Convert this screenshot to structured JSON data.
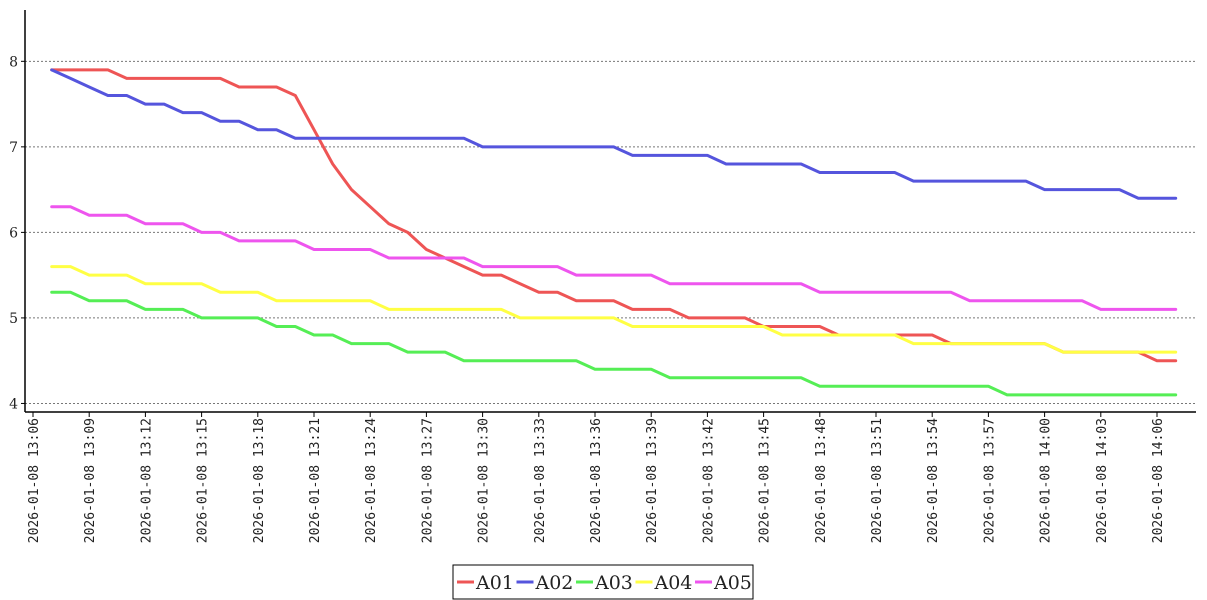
{
  "chart_data": {
    "type": "line",
    "title": "",
    "xlabel": "",
    "ylabel": "",
    "x_ticks": [
      "2026-01-08 13:06",
      "2026-01-08 13:09",
      "2026-01-08 13:12",
      "2026-01-08 13:15",
      "2026-01-08 13:18",
      "2026-01-08 13:21",
      "2026-01-08 13:24",
      "2026-01-08 13:27",
      "2026-01-08 13:30",
      "2026-01-08 13:33",
      "2026-01-08 13:36",
      "2026-01-08 13:39",
      "2026-01-08 13:42",
      "2026-01-08 13:45",
      "2026-01-08 13:48",
      "2026-01-08 13:51",
      "2026-01-08 13:54",
      "2026-01-08 13:57",
      "2026-01-08 14:00",
      "2026-01-08 14:03",
      "2026-01-08 14:06"
    ],
    "x": [
      "2026-01-08 13:07",
      "2026-01-08 13:08",
      "2026-01-08 13:09",
      "2026-01-08 13:10",
      "2026-01-08 13:11",
      "2026-01-08 13:12",
      "2026-01-08 13:13",
      "2026-01-08 13:14",
      "2026-01-08 13:15",
      "2026-01-08 13:16",
      "2026-01-08 13:17",
      "2026-01-08 13:18",
      "2026-01-08 13:19",
      "2026-01-08 13:20",
      "2026-01-08 13:21",
      "2026-01-08 13:22",
      "2026-01-08 13:23",
      "2026-01-08 13:24",
      "2026-01-08 13:25",
      "2026-01-08 13:26",
      "2026-01-08 13:27",
      "2026-01-08 13:28",
      "2026-01-08 13:29",
      "2026-01-08 13:30",
      "2026-01-08 13:31",
      "2026-01-08 13:32",
      "2026-01-08 13:33",
      "2026-01-08 13:34",
      "2026-01-08 13:35",
      "2026-01-08 13:36",
      "2026-01-08 13:37",
      "2026-01-08 13:38",
      "2026-01-08 13:39",
      "2026-01-08 13:40",
      "2026-01-08 13:41",
      "2026-01-08 13:42",
      "2026-01-08 13:43",
      "2026-01-08 13:44",
      "2026-01-08 13:45",
      "2026-01-08 13:46",
      "2026-01-08 13:47",
      "2026-01-08 13:48",
      "2026-01-08 13:49",
      "2026-01-08 13:50",
      "2026-01-08 13:51",
      "2026-01-08 13:52",
      "2026-01-08 13:53",
      "2026-01-08 13:54",
      "2026-01-08 13:55",
      "2026-01-08 13:56",
      "2026-01-08 13:57",
      "2026-01-08 13:58",
      "2026-01-08 13:59",
      "2026-01-08 14:00",
      "2026-01-08 14:01",
      "2026-01-08 14:02",
      "2026-01-08 14:03",
      "2026-01-08 14:04",
      "2026-01-08 14:05",
      "2026-01-08 14:06",
      "2026-01-08 14:07"
    ],
    "ylim": [
      3.9,
      8.6
    ],
    "y_ticks": [
      4,
      5,
      6,
      7,
      8
    ],
    "grid": "horizontal dashed",
    "legend": "bottom-center",
    "series": [
      {
        "name": "A01",
        "color": "#ee5555",
        "values": [
          7.9,
          7.9,
          7.9,
          7.9,
          7.8,
          7.8,
          7.8,
          7.8,
          7.8,
          7.8,
          7.7,
          7.7,
          7.7,
          7.6,
          7.2,
          6.8,
          6.5,
          6.3,
          6.1,
          6.0,
          5.8,
          5.7,
          5.6,
          5.5,
          5.5,
          5.4,
          5.3,
          5.3,
          5.2,
          5.2,
          5.2,
          5.1,
          5.1,
          5.1,
          5.0,
          5.0,
          5.0,
          5.0,
          4.9,
          4.9,
          4.9,
          4.9,
          4.8,
          4.8,
          4.8,
          4.8,
          4.8,
          4.8,
          4.7,
          4.7,
          4.7,
          4.7,
          4.7,
          4.7,
          4.6,
          4.6,
          4.6,
          4.6,
          4.6,
          4.5,
          4.5
        ]
      },
      {
        "name": "A02",
        "color": "#5555dd",
        "values": [
          7.9,
          7.8,
          7.7,
          7.6,
          7.6,
          7.5,
          7.5,
          7.4,
          7.4,
          7.3,
          7.3,
          7.2,
          7.2,
          7.1,
          7.1,
          7.1,
          7.1,
          7.1,
          7.1,
          7.1,
          7.1,
          7.1,
          7.1,
          7.0,
          7.0,
          7.0,
          7.0,
          7.0,
          7.0,
          7.0,
          7.0,
          6.9,
          6.9,
          6.9,
          6.9,
          6.9,
          6.8,
          6.8,
          6.8,
          6.8,
          6.8,
          6.7,
          6.7,
          6.7,
          6.7,
          6.7,
          6.6,
          6.6,
          6.6,
          6.6,
          6.6,
          6.6,
          6.6,
          6.5,
          6.5,
          6.5,
          6.5,
          6.5,
          6.4,
          6.4,
          6.4
        ]
      },
      {
        "name": "A03",
        "color": "#55ee55",
        "values": [
          5.3,
          5.3,
          5.2,
          5.2,
          5.2,
          5.1,
          5.1,
          5.1,
          5.0,
          5.0,
          5.0,
          5.0,
          4.9,
          4.9,
          4.8,
          4.8,
          4.7,
          4.7,
          4.7,
          4.6,
          4.6,
          4.6,
          4.5,
          4.5,
          4.5,
          4.5,
          4.5,
          4.5,
          4.5,
          4.4,
          4.4,
          4.4,
          4.4,
          4.3,
          4.3,
          4.3,
          4.3,
          4.3,
          4.3,
          4.3,
          4.3,
          4.2,
          4.2,
          4.2,
          4.2,
          4.2,
          4.2,
          4.2,
          4.2,
          4.2,
          4.2,
          4.1,
          4.1,
          4.1,
          4.1,
          4.1,
          4.1,
          4.1,
          4.1,
          4.1,
          4.1
        ]
      },
      {
        "name": "A04",
        "color": "#ffff44",
        "values": [
          5.6,
          5.6,
          5.5,
          5.5,
          5.5,
          5.4,
          5.4,
          5.4,
          5.4,
          5.3,
          5.3,
          5.3,
          5.2,
          5.2,
          5.2,
          5.2,
          5.2,
          5.2,
          5.1,
          5.1,
          5.1,
          5.1,
          5.1,
          5.1,
          5.1,
          5.0,
          5.0,
          5.0,
          5.0,
          5.0,
          5.0,
          4.9,
          4.9,
          4.9,
          4.9,
          4.9,
          4.9,
          4.9,
          4.9,
          4.8,
          4.8,
          4.8,
          4.8,
          4.8,
          4.8,
          4.8,
          4.7,
          4.7,
          4.7,
          4.7,
          4.7,
          4.7,
          4.7,
          4.7,
          4.6,
          4.6,
          4.6,
          4.6,
          4.6,
          4.6,
          4.6
        ]
      },
      {
        "name": "A05",
        "color": "#ee55ee",
        "values": [
          6.3,
          6.3,
          6.2,
          6.2,
          6.2,
          6.1,
          6.1,
          6.1,
          6.0,
          6.0,
          5.9,
          5.9,
          5.9,
          5.9,
          5.8,
          5.8,
          5.8,
          5.8,
          5.7,
          5.7,
          5.7,
          5.7,
          5.7,
          5.6,
          5.6,
          5.6,
          5.6,
          5.6,
          5.5,
          5.5,
          5.5,
          5.5,
          5.5,
          5.4,
          5.4,
          5.4,
          5.4,
          5.4,
          5.4,
          5.4,
          5.4,
          5.3,
          5.3,
          5.3,
          5.3,
          5.3,
          5.3,
          5.3,
          5.3,
          5.2,
          5.2,
          5.2,
          5.2,
          5.2,
          5.2,
          5.2,
          5.1,
          5.1,
          5.1,
          5.1,
          5.1
        ]
      }
    ]
  }
}
